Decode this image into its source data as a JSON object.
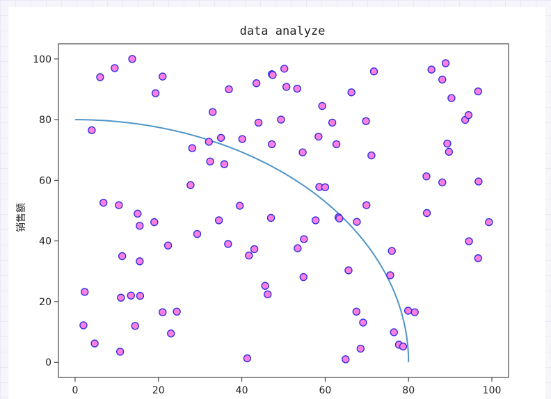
{
  "chart_data": {
    "type": "scatter",
    "title": "data analyze",
    "xlabel": "",
    "ylabel": "销售额",
    "xlim": [
      -4,
      104
    ],
    "ylim": [
      -5,
      105
    ],
    "xticks": [
      0,
      20,
      40,
      60,
      80,
      100
    ],
    "yticks": [
      0,
      20,
      40,
      60,
      80,
      100
    ],
    "grid": false,
    "colors": {
      "marker_fill": "#ff7fe0",
      "marker_edge": "#3030e0",
      "curve": "#4e94c8",
      "axes": "#222222"
    },
    "series": [
      {
        "type": "line",
        "description_text_none": "",
        "color": "#4e94c8",
        "curve": {
          "kind": "quarter-ellipse",
          "x_radius": 80,
          "y_radius": 80,
          "start": [
            0,
            80
          ],
          "end": [
            80,
            0
          ]
        }
      },
      {
        "type": "scatter",
        "points": [
          [
            13.7,
            100
          ],
          [
            9.5,
            97
          ],
          [
            6,
            94
          ],
          [
            21,
            94.2
          ],
          [
            19.3,
            88.7
          ],
          [
            4,
            76.5
          ],
          [
            6.8,
            52.6
          ],
          [
            10.5,
            51.8
          ],
          [
            15,
            49
          ],
          [
            15.5,
            45
          ],
          [
            19,
            46.2
          ],
          [
            11.3,
            35
          ],
          [
            15.5,
            33.3
          ],
          [
            22.3,
            38.5
          ],
          [
            2.3,
            23.2
          ],
          [
            11,
            21.3
          ],
          [
            13.4,
            22
          ],
          [
            15.6,
            21.9
          ],
          [
            2,
            12.2
          ],
          [
            14.4,
            12
          ],
          [
            4.7,
            6.2
          ],
          [
            10.8,
            3.5
          ],
          [
            21,
            16.5
          ],
          [
            24.4,
            16.7
          ],
          [
            23,
            9.5
          ],
          [
            27.7,
            58.4
          ],
          [
            29.3,
            42.3
          ],
          [
            28.1,
            70.6
          ],
          [
            32.1,
            72.7
          ],
          [
            33,
            82.5
          ],
          [
            32.4,
            66.2
          ],
          [
            35,
            74
          ],
          [
            35.8,
            65.3
          ],
          [
            36.9,
            90
          ],
          [
            34.5,
            46.8
          ],
          [
            36.7,
            39
          ],
          [
            39.5,
            51.6
          ],
          [
            40.1,
            73.6
          ],
          [
            41.7,
            35.2
          ],
          [
            41.3,
            1.3
          ],
          [
            43,
            37.3
          ],
          [
            43.5,
            92
          ],
          [
            44,
            79
          ],
          [
            45.6,
            25.2
          ],
          [
            46.2,
            22.4
          ],
          [
            47,
            47.6
          ],
          [
            47.2,
            71.9
          ],
          [
            47.2,
            95
          ],
          [
            47.4,
            94.7
          ],
          [
            49.4,
            80
          ],
          [
            50.2,
            96.8
          ],
          [
            50.7,
            90.8
          ],
          [
            53.3,
            90.2
          ],
          [
            53.4,
            37.6
          ],
          [
            54.6,
            69.2
          ],
          [
            54.9,
            40.6
          ],
          [
            54.8,
            28.1
          ],
          [
            57.7,
            46.8
          ],
          [
            58.4,
            74.4
          ],
          [
            58.6,
            57.8
          ],
          [
            59.3,
            84.5
          ],
          [
            60,
            57.7
          ],
          [
            61.7,
            79
          ],
          [
            62.7,
            71.9
          ],
          [
            63.2,
            47.8
          ],
          [
            63.4,
            47.4
          ],
          [
            65.6,
            30.3
          ],
          [
            64.9,
            1
          ],
          [
            66.3,
            89
          ],
          [
            67.5,
            16.7
          ],
          [
            67.6,
            46.3
          ],
          [
            68.5,
            4.5
          ],
          [
            69.1,
            13.1
          ],
          [
            69.8,
            79.5
          ],
          [
            69.9,
            51.8
          ],
          [
            71.1,
            68.2
          ],
          [
            71.7,
            95.9
          ],
          [
            75.6,
            28.7
          ],
          [
            76,
            36.7
          ],
          [
            76.5,
            9.9
          ],
          [
            77.7,
            5.8
          ],
          [
            78.7,
            5.2
          ],
          [
            79.9,
            17
          ],
          [
            81.5,
            16.5
          ],
          [
            84.3,
            61.3
          ],
          [
            84.4,
            49.2
          ],
          [
            85.5,
            96.5
          ],
          [
            88.1,
            93.2
          ],
          [
            88.1,
            59.3
          ],
          [
            88.9,
            98.6
          ],
          [
            89.3,
            72.1
          ],
          [
            89.7,
            69.4
          ],
          [
            90.3,
            87.1
          ],
          [
            93.6,
            79.9
          ],
          [
            94.4,
            81.5
          ],
          [
            94.5,
            39.9
          ],
          [
            96.7,
            89.3
          ],
          [
            96.7,
            34.3
          ],
          [
            96.8,
            59.6
          ],
          [
            99.3,
            46.2
          ]
        ]
      }
    ]
  }
}
